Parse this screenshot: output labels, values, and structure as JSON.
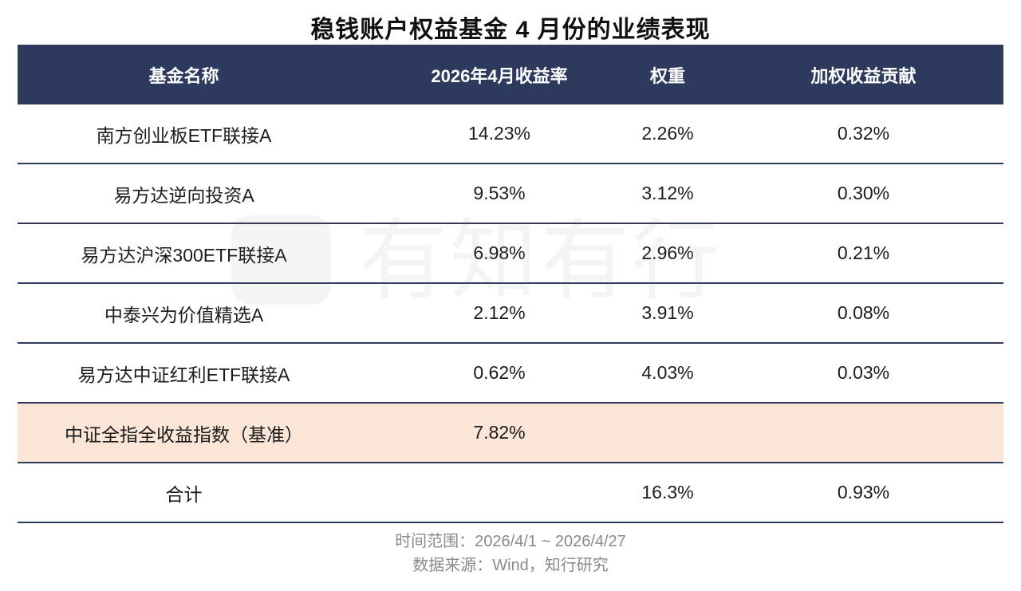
{
  "title": "稳钱账户权益基金 4 月份的业绩表现",
  "watermark": {
    "text": "有知有行"
  },
  "table": {
    "headers": [
      "基金名称",
      "2026年4月收益率",
      "权重",
      "加权收益贡献"
    ],
    "rows": [
      {
        "name": "南方创业板ETF联接A",
        "return": "14.23%",
        "weight": "2.26%",
        "contribution": "0.32%"
      },
      {
        "name": "易方达逆向投资A",
        "return": "9.53%",
        "weight": "3.12%",
        "contribution": "0.30%"
      },
      {
        "name": "易方达沪深300ETF联接A",
        "return": "6.98%",
        "weight": "2.96%",
        "contribution": "0.21%"
      },
      {
        "name": "中泰兴为价值精选A",
        "return": "2.12%",
        "weight": "3.91%",
        "contribution": "0.08%"
      },
      {
        "name": "易方达中证红利ETF联接A",
        "return": "0.62%",
        "weight": "4.03%",
        "contribution": "0.03%"
      },
      {
        "name": "中证全指全收益指数（基准）",
        "return": "7.82%",
        "weight": "",
        "contribution": ""
      },
      {
        "name": "合计",
        "return": "",
        "weight": "16.3%",
        "contribution": "0.93%"
      }
    ]
  },
  "footer": {
    "time_range": "时间范围：2026/4/1 ~ 2026/4/27",
    "source": "数据来源：Wind，知行研究"
  },
  "colors": {
    "header_bg": "#2d3a5e",
    "benchmark_bg": "#fbe5d6",
    "highlight_red": "#e31b1b"
  }
}
